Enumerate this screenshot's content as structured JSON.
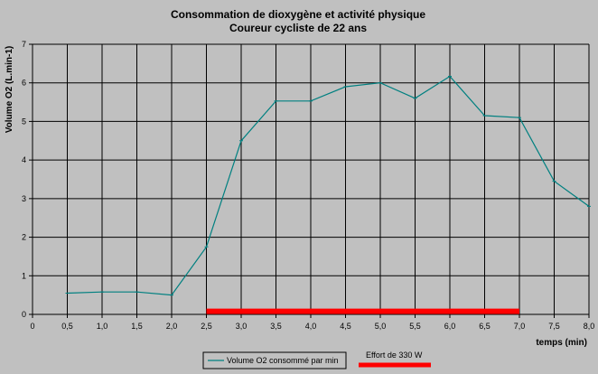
{
  "chart_data": {
    "type": "line",
    "title": "Consommation de dioxygène et activité physique",
    "subtitle": "Coureur cycliste de 22 ans",
    "xlabel": "temps (min)",
    "ylabel": "Volume O2 (L.min-1)",
    "xlim": [
      0,
      8
    ],
    "ylim": [
      0,
      7
    ],
    "x_ticks": [
      "0",
      "0,5",
      "1,0",
      "1,5",
      "2,0",
      "2,5",
      "3,0",
      "3,5",
      "4,0",
      "4,5",
      "5,0",
      "5,5",
      "6,0",
      "6,5",
      "7,0",
      "7,5",
      "8,0"
    ],
    "y_ticks": [
      "0",
      "1",
      "2",
      "3",
      "4",
      "5",
      "6",
      "7"
    ],
    "grid": true,
    "legend_position": "bottom",
    "series": [
      {
        "name": "Volume O2 consommé par min",
        "color": "#008080",
        "x": [
          0.5,
          1.0,
          1.5,
          2.0,
          2.5,
          3.0,
          3.5,
          4.0,
          4.5,
          5.0,
          5.5,
          6.0,
          6.5,
          7.0,
          7.5,
          8.0
        ],
        "values": [
          0.55,
          0.58,
          0.58,
          0.5,
          1.75,
          4.5,
          5.53,
          5.53,
          5.9,
          6.0,
          5.6,
          6.17,
          5.15,
          5.1,
          3.45,
          2.8
        ]
      }
    ],
    "effort_bar": {
      "name": "Effort de 330 W",
      "color": "#ff0000",
      "x_start": 2.5,
      "x_end": 7.0,
      "y": 0.08
    }
  }
}
